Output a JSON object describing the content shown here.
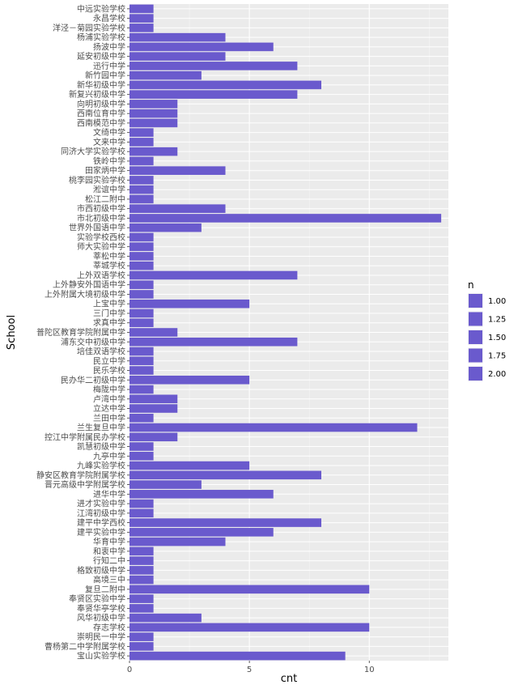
{
  "chart_data": {
    "type": "bar",
    "orientation": "horizontal",
    "xlabel": "cnt",
    "ylabel": "School",
    "xlim": [
      0,
      13.3
    ],
    "x_ticks": [
      0,
      5,
      10
    ],
    "grid": true,
    "bar_color": "#6a5acd",
    "panel_color": "#ebebeb",
    "legend": {
      "title": "n",
      "placement": "right",
      "entries": [
        "1.00",
        "1.25",
        "1.50",
        "1.75",
        "2.00"
      ]
    },
    "categories": [
      "中远实验学校",
      "永昌学校",
      "洋泾－菊园实验学校",
      "杨浦实验学校",
      "扬波中学",
      "延安初级中学",
      "迅行中学",
      "新竹园中学",
      "新华初级中学",
      "新复兴初级中学",
      "向明初级中学",
      "西南位育中学",
      "西南模范中学",
      "文绮中学",
      "文来中学",
      "同济大学实验学校",
      "铁岭中学",
      "田家炳中学",
      "桃李园实验学校",
      "淞谊中学",
      "松江二附中",
      "市西初级中学",
      "市北初级中学",
      "世界外国语中学",
      "实验学校西校",
      "师大实验中学",
      "莘松中学",
      "莘城学校",
      "上外双语学校",
      "上外静安外国语中学",
      "上外附属大境初级中学",
      "上宝中学",
      "三门中学",
      "求真中学",
      "普陀区教育学院附属中学",
      "浦东交中初级中学",
      "培佳双语学校",
      "民立中学",
      "民乐学校",
      "民办华二初级中学",
      "梅陇中学",
      "卢湾中学",
      "立达中学",
      "兰田中学",
      "兰生复旦中学",
      "控江中学附属民办学校",
      "凯慧初级中学",
      "九亭中学",
      "九峰实验学校",
      "静安区教育学院附属学校",
      "晋元高级中学附属学校",
      "进华中学",
      "进才实验中学",
      "江湾初级中学",
      "建平中学西校",
      "建平实验中学",
      "华育中学",
      "和衷中学",
      "行知二中",
      "格致初级中学",
      "高境三中",
      "复旦二附中",
      "奉贤区实验中学",
      "奉贤华亭学校",
      "风华初级中学",
      "存志学校",
      "崇明民一中学",
      "曹杨第二中学附属学校",
      "宝山实验学校"
    ],
    "values": [
      1,
      1,
      1,
      4,
      6,
      4,
      7,
      3,
      8,
      7,
      2,
      2,
      2,
      1,
      1,
      2,
      1,
      4,
      1,
      1,
      1,
      4,
      13,
      3,
      1,
      1,
      1,
      1,
      7,
      1,
      1,
      5,
      1,
      1,
      2,
      7,
      1,
      1,
      1,
      5,
      1,
      2,
      2,
      1,
      12,
      2,
      1,
      1,
      5,
      8,
      3,
      6,
      1,
      1,
      8,
      6,
      4,
      1,
      1,
      1,
      1,
      10,
      1,
      1,
      3,
      10,
      1,
      1,
      9
    ]
  }
}
